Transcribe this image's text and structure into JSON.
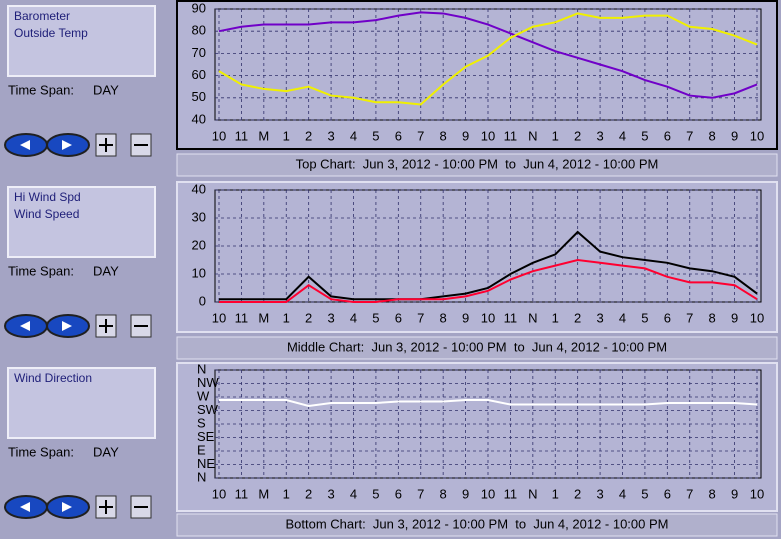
{
  "panels": [
    {
      "time_span_label": "Time Span:",
      "time_span": "DAY"
    },
    {
      "time_span_label": "Time Span:",
      "time_span": "DAY"
    },
    {
      "time_span_label": "Time Span:",
      "time_span": "DAY"
    }
  ],
  "charts": [
    {
      "type": "line",
      "caption": "Top Chart:  Jun 3, 2012 - 10:00 PM  to  Jun 4, 2012 - 10:00 PM",
      "categories": [
        "10",
        "11",
        "M",
        "1",
        "2",
        "3",
        "4",
        "5",
        "6",
        "7",
        "8",
        "9",
        "10",
        "11",
        "N",
        "1",
        "2",
        "3",
        "4",
        "5",
        "6",
        "7",
        "8",
        "9",
        "10"
      ],
      "ylim": [
        40,
        90
      ],
      "yticks": [
        40,
        50,
        60,
        70,
        80,
        90
      ],
      "grid": true,
      "series": [
        {
          "name": "Barometer",
          "color": "#7000c8",
          "values": [
            80,
            82,
            83,
            83,
            83,
            84,
            84,
            85,
            87,
            88.5,
            88,
            86,
            83,
            79,
            75,
            71,
            68,
            65,
            62,
            58,
            55,
            51,
            50,
            52,
            56
          ]
        },
        {
          "name": "Outside Temp",
          "color": "#f0f000",
          "values": [
            62,
            56,
            54,
            53,
            55,
            51,
            50,
            48,
            48,
            47,
            56,
            64,
            69,
            77,
            82,
            84,
            88,
            86,
            86,
            87,
            87,
            82,
            81,
            78,
            74
          ]
        }
      ]
    },
    {
      "type": "line",
      "caption": "Middle Chart:  Jun 3, 2012 - 10:00 PM  to  Jun 4, 2012 - 10:00 PM",
      "categories": [
        "10",
        "11",
        "M",
        "1",
        "2",
        "3",
        "4",
        "5",
        "6",
        "7",
        "8",
        "9",
        "10",
        "11",
        "N",
        "1",
        "2",
        "3",
        "4",
        "5",
        "6",
        "7",
        "8",
        "9",
        "10"
      ],
      "ylim": [
        0,
        40
      ],
      "yticks": [
        0,
        10,
        20,
        30,
        40
      ],
      "grid": true,
      "series": [
        {
          "name": "Hi Wind Spd",
          "color": "#000000",
          "values": [
            1,
            1,
            1,
            1,
            9,
            2,
            1,
            1,
            1,
            1,
            2,
            3,
            5,
            10,
            14,
            17,
            25,
            18,
            16,
            15,
            14,
            12,
            11,
            9,
            3
          ]
        },
        {
          "name": "Wind Speed",
          "color": "#ff0030",
          "values": [
            0,
            0,
            0,
            0,
            6,
            1,
            0,
            0,
            1,
            1,
            1,
            2,
            4,
            8,
            11,
            13,
            15,
            14,
            13,
            12,
            9,
            7,
            7,
            6,
            1
          ]
        }
      ]
    },
    {
      "type": "line",
      "caption": "Bottom Chart:  Jun 3, 2012 - 10:00 PM  to  Jun 4, 2012 - 10:00 PM",
      "categories": [
        "10",
        "11",
        "M",
        "1",
        "2",
        "3",
        "4",
        "5",
        "6",
        "7",
        "8",
        "9",
        "10",
        "11",
        "N",
        "1",
        "2",
        "3",
        "4",
        "5",
        "6",
        "7",
        "8",
        "9",
        "10"
      ],
      "ylim": [
        0,
        360
      ],
      "yticks": [
        {
          "value": 0,
          "label": "N"
        },
        {
          "value": 45,
          "label": "NE"
        },
        {
          "value": 90,
          "label": "E"
        },
        {
          "value": 135,
          "label": "SE"
        },
        {
          "value": 180,
          "label": "S"
        },
        {
          "value": 225,
          "label": "SW"
        },
        {
          "value": 270,
          "label": "W"
        },
        {
          "value": 315,
          "label": "NW"
        },
        {
          "value": 360,
          "label": "N"
        }
      ],
      "grid": true,
      "series": [
        {
          "name": "Wind Direction",
          "color": "#ffffff",
          "values": [
            260,
            260,
            260,
            260,
            240,
            250,
            250,
            250,
            255,
            255,
            255,
            260,
            260,
            245,
            245,
            245,
            245,
            245,
            245,
            245,
            250,
            250,
            250,
            250,
            245
          ]
        }
      ]
    }
  ]
}
